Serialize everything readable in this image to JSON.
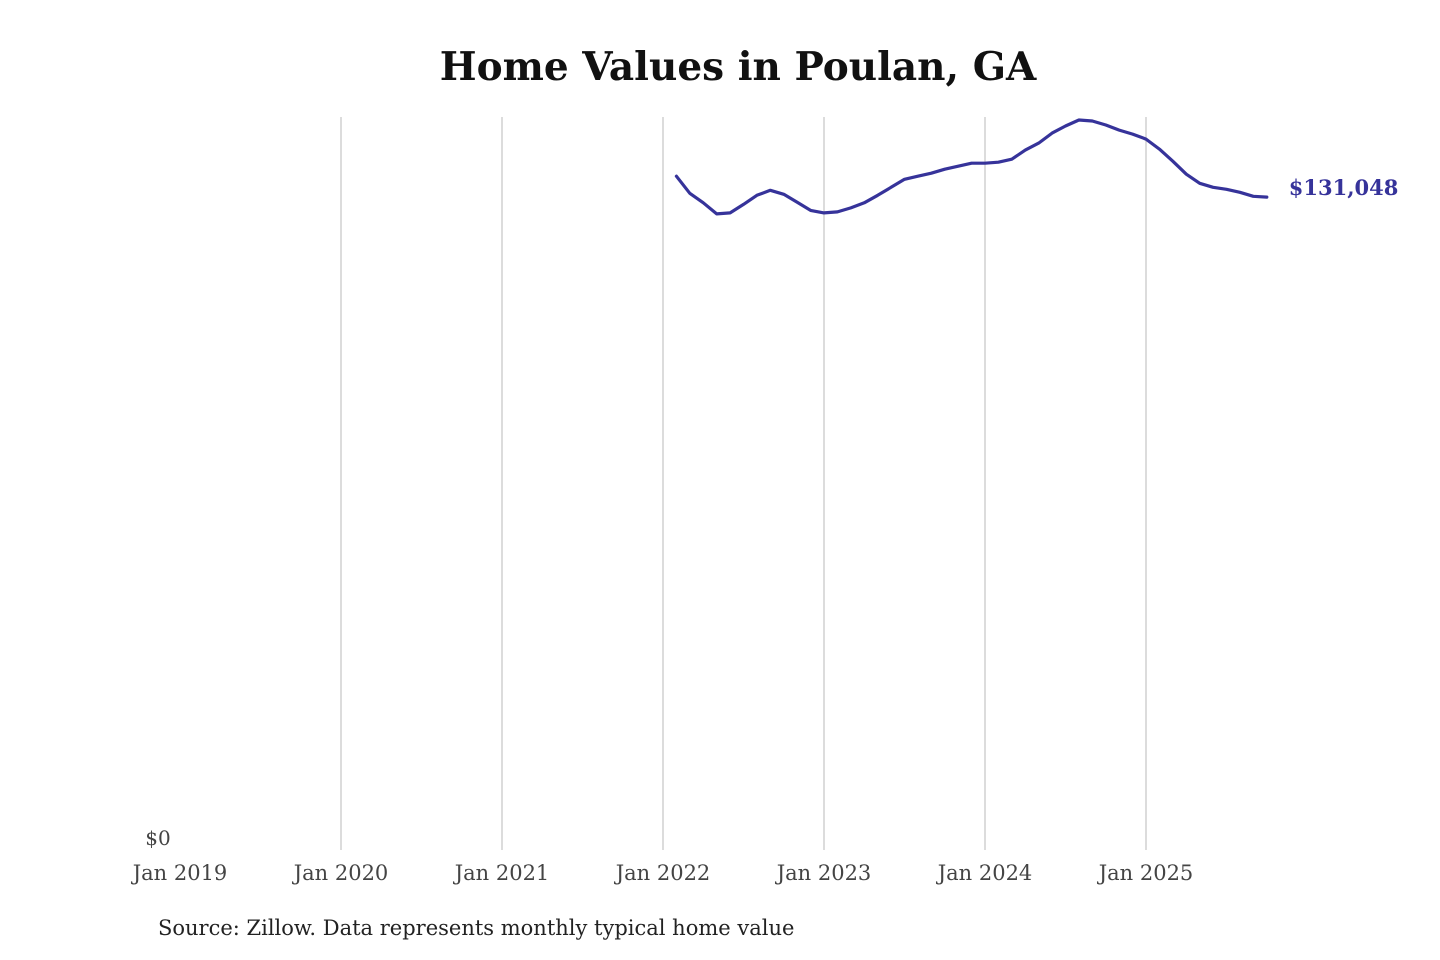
{
  "chart_data": {
    "type": "line",
    "title": "Home Values in Poulan, GA",
    "source": "Source: Zillow. Data represents monthly typical home value",
    "xlabel": "",
    "ylabel": "",
    "x_tick_labels": [
      "Jan 2019",
      "Jan 2020",
      "Jan 2021",
      "Jan 2022",
      "Jan 2023",
      "Jan 2024",
      "Jan 2025"
    ],
    "y_tick_labels": [
      "$0"
    ],
    "xlim": [
      "2019-01",
      "2025-10"
    ],
    "ylim": [
      0,
      147000
    ],
    "grid": "vertical",
    "line_color": "#36339a",
    "end_label": "$131,048",
    "series": [
      {
        "x": [
          "2022-02",
          "2022-03",
          "2022-04",
          "2022-05",
          "2022-06",
          "2022-07",
          "2022-08",
          "2022-09",
          "2022-10",
          "2022-11",
          "2022-12",
          "2023-01",
          "2023-02",
          "2023-03",
          "2023-04",
          "2023-05",
          "2023-06",
          "2023-07",
          "2023-08",
          "2023-09",
          "2023-10",
          "2023-11",
          "2023-12",
          "2024-01",
          "2024-02",
          "2024-03",
          "2024-04",
          "2024-05",
          "2024-06",
          "2024-07",
          "2024-08",
          "2024-09",
          "2024-10",
          "2024-11",
          "2024-12",
          "2025-01",
          "2025-02",
          "2025-03",
          "2025-04",
          "2025-05",
          "2025-06",
          "2025-07",
          "2025-08",
          "2025-09",
          "2025-10"
        ],
        "values": [
          135200,
          131800,
          129900,
          127700,
          127900,
          129600,
          131400,
          132400,
          131600,
          130000,
          128400,
          127900,
          128100,
          128900,
          129900,
          131400,
          133000,
          134600,
          135200,
          135800,
          136600,
          137200,
          137800,
          137800,
          138000,
          138600,
          140400,
          141800,
          143800,
          145200,
          146400,
          146200,
          145400,
          144400,
          143600,
          142600,
          140600,
          138200,
          135600,
          133800,
          133000,
          132600,
          132000,
          131200,
          131048
        ]
      }
    ]
  }
}
